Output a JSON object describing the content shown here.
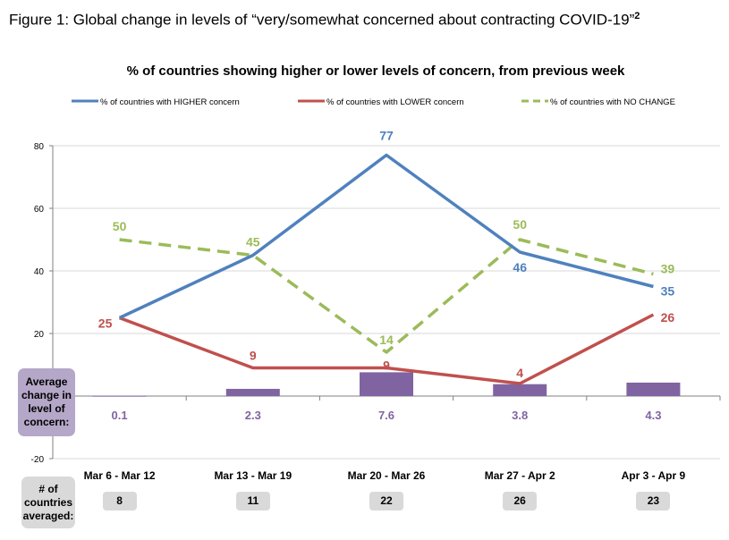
{
  "figure_title": "Figure 1: Global change in levels of “very/somewhat concerned about contracting COVID-19”",
  "figure_footnote": "2",
  "avg_label": "Average change in level of concern:",
  "count_label": "# of countries averaged:",
  "colors": {
    "higher": "#4f81bd",
    "lower": "#c0504d",
    "nochange": "#9bbb59",
    "bars": "#8064a2",
    "grid": "#d9d9d9",
    "axis": "#808080"
  },
  "chart_data": {
    "type": "line",
    "title": "% of countries showing higher or lower levels of concern, from previous week",
    "categories": [
      "Mar 6 - Mar 12",
      "Mar 13 - Mar 19",
      "Mar 20 - Mar 26",
      "Mar 27 - Apr 2",
      "Apr 3 - Apr 9"
    ],
    "ylim": [
      -20,
      80
    ],
    "yticks": [
      -20,
      0,
      20,
      40,
      60,
      80
    ],
    "ytick_labels": [
      "-20",
      "",
      "20",
      "40",
      "60",
      "80"
    ],
    "grid": true,
    "legend_position": "top",
    "series": [
      {
        "name": "% of countries with HIGHER concern",
        "values": [
          25,
          45,
          77,
          46,
          35
        ],
        "labels": [
          "",
          "",
          "77",
          "46",
          "35"
        ],
        "style": "solid",
        "color": "#4f81bd"
      },
      {
        "name": "% of countries with LOWER concern",
        "values": [
          25,
          9,
          9,
          4,
          26
        ],
        "labels": [
          "25",
          "9",
          "9",
          "4",
          "26"
        ],
        "style": "solid",
        "color": "#c0504d"
      },
      {
        "name": "% of countries with NO CHANGE",
        "values": [
          50,
          45,
          14,
          50,
          39
        ],
        "labels": [
          "50",
          "45",
          "14",
          "50",
          "39"
        ],
        "style": "dashed",
        "color": "#9bbb59"
      }
    ],
    "bars": {
      "name": "Average change in level of concern",
      "values": [
        0.1,
        2.3,
        7.6,
        3.8,
        4.3
      ],
      "labels": [
        "0.1",
        "2.3",
        "7.6",
        "3.8",
        "4.3"
      ],
      "color": "#8064a2"
    },
    "countries_averaged": [
      "8",
      "11",
      "22",
      "26",
      "23"
    ]
  }
}
